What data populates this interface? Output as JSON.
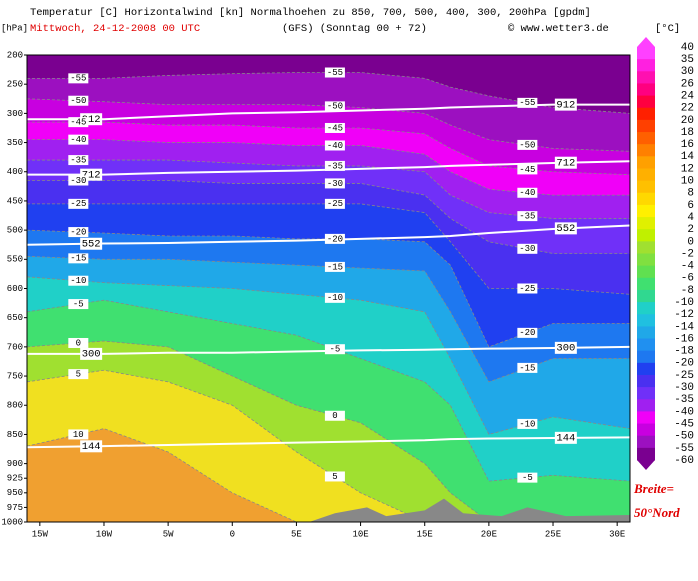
{
  "chart_data": {
    "type": "contour",
    "title": "Temperatur [C] Horizontalwind [kn] Normalhoehen zu 850, 700, 500, 400, 300, 200hPa [gpdm]",
    "subtitle": "Mittwoch, 24-12-2008   00 UTC",
    "model": "(GFS)   (Sonntag 00 + 72)",
    "source": "© www.wetter3.de",
    "y_label": "[hPa]",
    "colorbar_label": "[°C]",
    "note": [
      "Breite=",
      "50°Nord"
    ],
    "xlim": [
      -16,
      31
    ],
    "ylim": [
      1000,
      200
    ],
    "xticks": [
      {
        "value": -15,
        "label": "15W"
      },
      {
        "value": -10,
        "label": "10W"
      },
      {
        "value": -5,
        "label": "5W"
      },
      0,
      {
        "value": 5,
        "label": "5E"
      },
      {
        "value": 10,
        "label": "10E"
      },
      {
        "value": 15,
        "label": "15E"
      },
      {
        "value": 20,
        "label": "20E"
      },
      {
        "value": 25,
        "label": "25E"
      },
      {
        "value": 30,
        "label": "30E"
      }
    ],
    "yticks": [
      200,
      250,
      300,
      350,
      400,
      450,
      500,
      550,
      600,
      650,
      700,
      750,
      800,
      850,
      900,
      925,
      950,
      975,
      1000
    ],
    "x": [
      -16,
      -10,
      -5,
      0,
      5,
      10,
      15,
      17,
      20,
      25,
      31
    ],
    "background_color": "#7a0090",
    "isotherms": [
      {
        "level": -55,
        "color": "#9c10c0",
        "p": [
          240,
          240,
          235,
          232,
          230,
          230,
          240,
          255,
          270,
          290,
          300
        ]
      },
      {
        "level": -50,
        "color": "#c800e0",
        "p": [
          275,
          280,
          285,
          285,
          285,
          290,
          300,
          320,
          345,
          360,
          365
        ]
      },
      {
        "level": -45,
        "color": "#f000f8",
        "p": [
          315,
          315,
          320,
          320,
          325,
          325,
          335,
          360,
          390,
          400,
          405
        ]
      },
      {
        "level": -40,
        "color": "#a020f0",
        "p": [
          345,
          345,
          350,
          350,
          355,
          355,
          370,
          400,
          430,
          440,
          440
        ]
      },
      {
        "level": -35,
        "color": "#7030f8",
        "p": [
          380,
          380,
          380,
          385,
          390,
          390,
          400,
          440,
          470,
          480,
          480
        ]
      },
      {
        "level": -30,
        "color": "#4a30f0",
        "p": [
          415,
          415,
          415,
          420,
          420,
          420,
          440,
          480,
          520,
          540,
          540
        ]
      },
      {
        "level": -25,
        "color": "#2040f0",
        "p": [
          455,
          455,
          455,
          455,
          455,
          455,
          470,
          520,
          600,
          600,
          610
        ]
      },
      {
        "level": -20,
        "color": "#1e78f0",
        "p": [
          500,
          505,
          510,
          510,
          515,
          515,
          520,
          560,
          700,
          660,
          660
        ]
      },
      {
        "level": -15,
        "color": "#20a8e8",
        "p": [
          545,
          550,
          550,
          555,
          560,
          565,
          570,
          640,
          760,
          720,
          720
        ]
      },
      {
        "level": -10,
        "color": "#20d0c8",
        "p": [
          580,
          590,
          595,
          600,
          610,
          620,
          640,
          720,
          850,
          820,
          840
        ]
      },
      {
        "level": -5,
        "color": "#40e070",
        "p": [
          640,
          620,
          640,
          660,
          680,
          720,
          760,
          800,
          930,
          920,
          930
        ]
      },
      {
        "level": 0,
        "color": "#a0e030",
        "p": [
          700,
          690,
          700,
          750,
          800,
          830,
          900,
          950,
          1000,
          1000,
          1000
        ]
      },
      {
        "level": 5,
        "color": "#f0e020",
        "p": [
          760,
          740,
          760,
          800,
          880,
          950,
          1000,
          1000,
          1000,
          1000,
          1000
        ]
      },
      {
        "level": 10,
        "color": "#f0a030",
        "p": [
          870,
          840,
          880,
          950,
          1000,
          1000,
          1000,
          1000,
          1000,
          1000,
          1000
        ]
      }
    ],
    "heights": [
      {
        "level": 912,
        "p": [
          310,
          310,
          305,
          300,
          298,
          295,
          292,
          290,
          288,
          285,
          285
        ]
      },
      {
        "level": 712,
        "p": [
          405,
          405,
          402,
          400,
          398,
          395,
          392,
          390,
          388,
          385,
          382
        ]
      },
      {
        "level": 552,
        "p": [
          525,
          523,
          522,
          520,
          518,
          515,
          512,
          510,
          505,
          498,
          492
        ]
      },
      {
        "level": 300,
        "p": [
          712,
          712,
          710,
          710,
          708,
          706,
          705,
          704,
          703,
          702,
          700
        ]
      },
      {
        "level": 144,
        "p": [
          872,
          870,
          868,
          866,
          864,
          862,
          860,
          858,
          857,
          856,
          855
        ]
      }
    ],
    "colorbar": {
      "labels": [
        40,
        35,
        30,
        26,
        24,
        22,
        20,
        18,
        16,
        14,
        12,
        10,
        8,
        6,
        4,
        2,
        0,
        -2,
        -4,
        -6,
        -8,
        -10,
        -12,
        -14,
        -16,
        -18,
        -20,
        -25,
        -30,
        -35,
        -40,
        -45,
        -50,
        -55,
        -60
      ],
      "colors": [
        "#ff40ff",
        "#ff20e0",
        "#ff10b0",
        "#ff0080",
        "#ff0040",
        "#ff2000",
        "#ff4000",
        "#ff6000",
        "#ff8000",
        "#ffa000",
        "#ffb000",
        "#ffc000",
        "#ffd800",
        "#fff000",
        "#e0f000",
        "#c0f000",
        "#a0e030",
        "#80e040",
        "#60e050",
        "#40e070",
        "#30d890",
        "#20d0c8",
        "#20c0e0",
        "#20a8e8",
        "#2090f0",
        "#1e78f0",
        "#2040f0",
        "#4a30f0",
        "#7030f8",
        "#a020f0",
        "#f000f8",
        "#c800e0",
        "#9c10c0",
        "#7a0090"
      ]
    }
  }
}
